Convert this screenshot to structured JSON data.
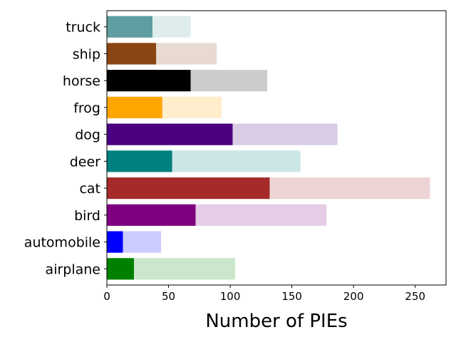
{
  "chart_data": {
    "type": "bar",
    "orientation": "horizontal",
    "stacked": true,
    "title": "",
    "xlabel": "Number of PIEs",
    "ylabel": "",
    "xlim": [
      0,
      275
    ],
    "x_ticks": [
      0,
      50,
      100,
      150,
      200,
      250
    ],
    "grid": false,
    "categories": [
      "airplane",
      "automobile",
      "bird",
      "cat",
      "deer",
      "dog",
      "frog",
      "horse",
      "ship",
      "truck"
    ],
    "colors": [
      "#008000",
      "#0000ff",
      "#800080",
      "#a52a2a",
      "#008080",
      "#4b0082",
      "#ffa500",
      "#000000",
      "#8b4513",
      "#5f9ea0"
    ],
    "series": [
      {
        "values": [
          22,
          13,
          72,
          132,
          53,
          102,
          45,
          68,
          40,
          37
        ]
      },
      {
        "values": [
          82,
          31,
          106,
          130,
          104,
          85,
          48,
          62,
          49,
          31
        ]
      }
    ]
  }
}
